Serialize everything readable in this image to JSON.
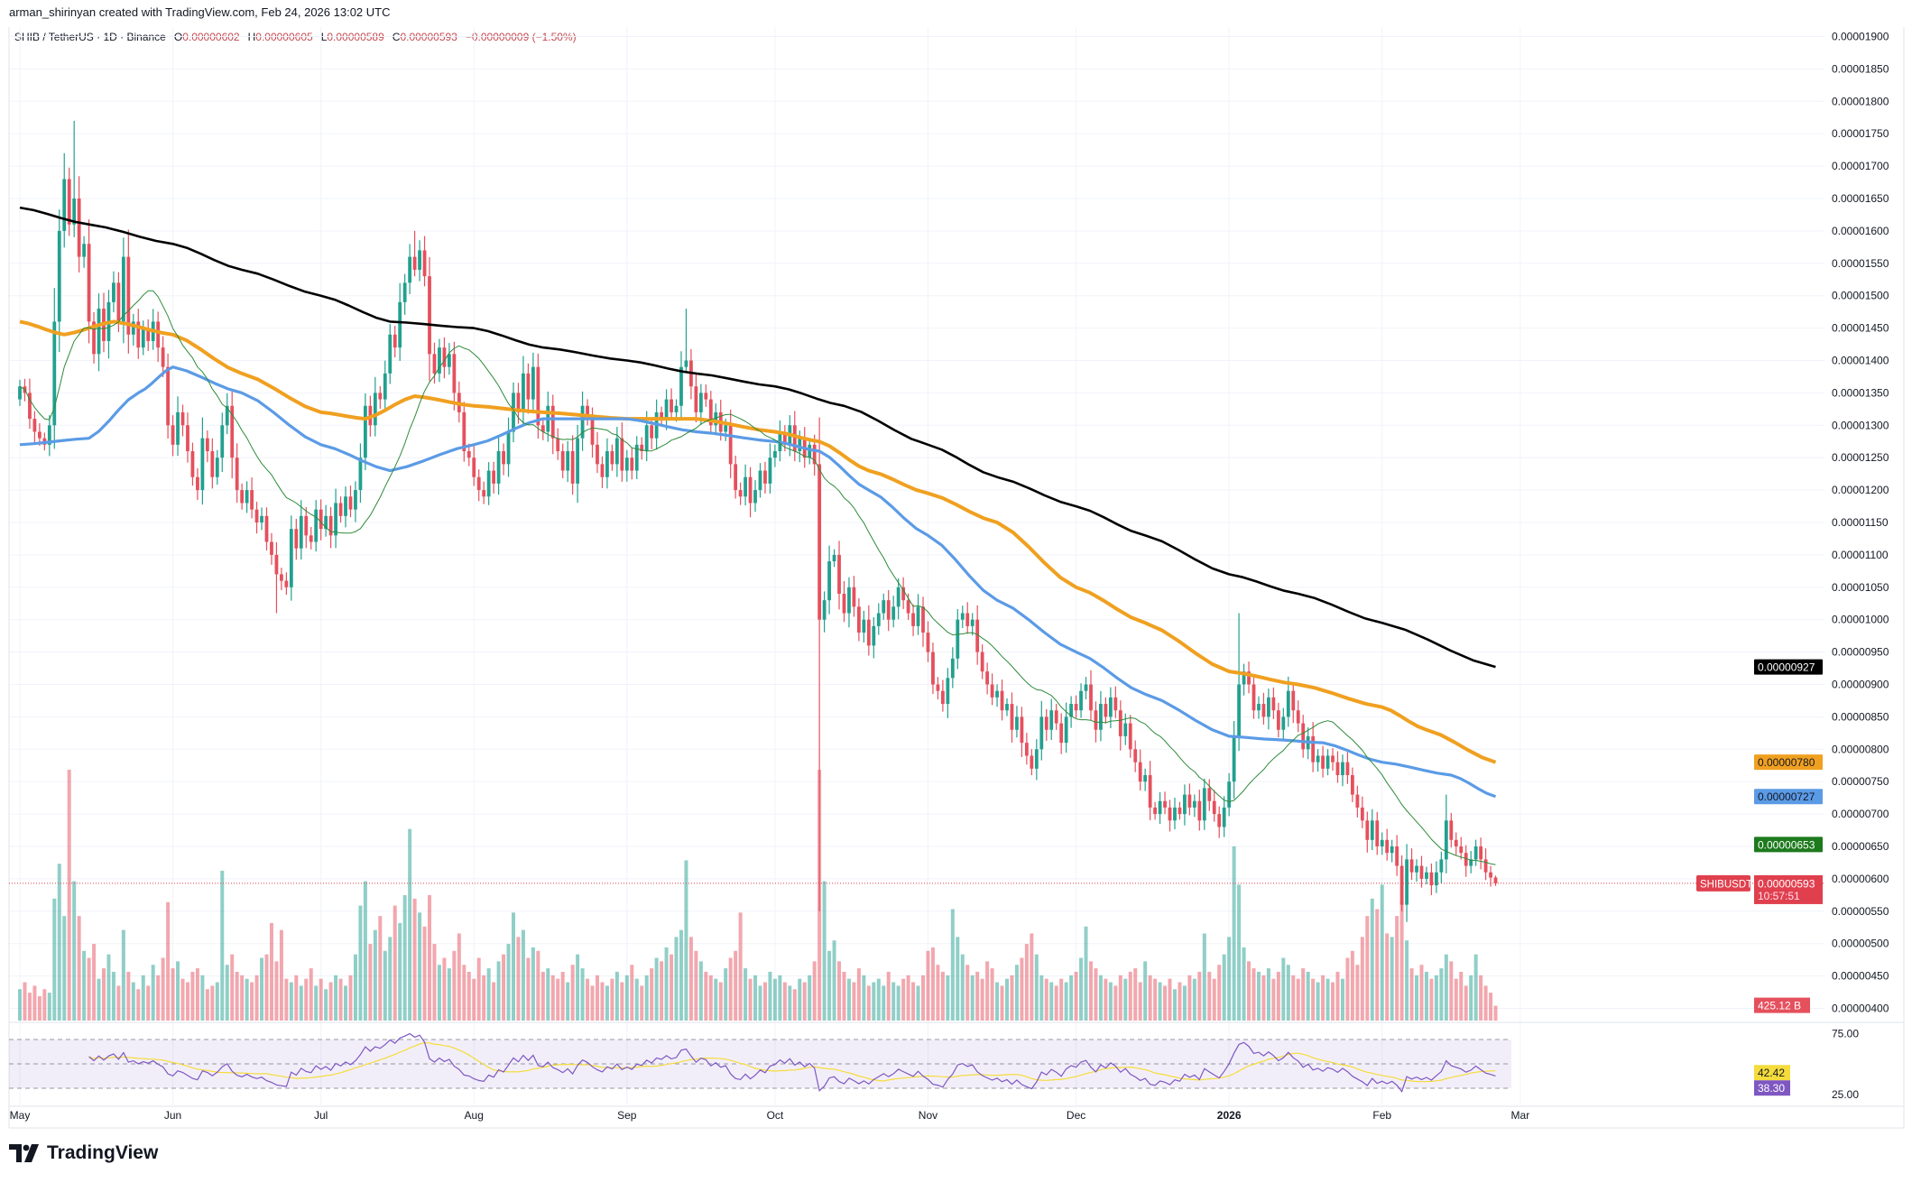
{
  "header": {
    "attribution": "arman_shirinyan created with TradingView.com, Feb 24, 2026 13:02 UTC"
  },
  "legend": {
    "symbol": "SHIB / TetherUS · 1D · Binance",
    "o_label": "O",
    "o": "0.00000602",
    "h_label": "H",
    "h": "0.00000605",
    "l_label": "L",
    "l": "0.00000589",
    "c_label": "C",
    "c": "0.00000593",
    "change": "−0.00000009 (−1.50%)"
  },
  "price_axis": {
    "ticks": [
      "0.00001900",
      "0.00001850",
      "0.00001800",
      "0.00001750",
      "0.00001700",
      "0.00001650",
      "0.00001600",
      "0.00001550",
      "0.00001500",
      "0.00001450",
      "0.00001400",
      "0.00001350",
      "0.00001300",
      "0.00001250",
      "0.00001200",
      "0.00001150",
      "0.00001100",
      "0.00001050",
      "0.00001000",
      "0.00000950",
      "0.00000900",
      "0.00000850",
      "0.00000800",
      "0.00000750",
      "0.00000700",
      "0.00000650",
      "0.00000600",
      "0.00000550",
      "0.00000500",
      "0.00000450",
      "0.00000400"
    ]
  },
  "ma_labels": {
    "ma200": "0.00000927",
    "ma100": "0.00000780",
    "ma50": "0.00000727",
    "ma20": "0.00000653"
  },
  "price_tag": {
    "symbol": "SHIBUSDT",
    "price": "0.00000593",
    "countdown": "10:57:51"
  },
  "volume_tag": "425.12 B",
  "rsi_axis": {
    "ticks": [
      "75.00",
      "25.00"
    ]
  },
  "rsi_values": {
    "rsi_ma": "42.42",
    "rsi": "38.30"
  },
  "time_axis": [
    {
      "label": "May",
      "date": "2025-05-01"
    },
    {
      "label": "Jun",
      "date": "2025-06-01"
    },
    {
      "label": "Jul",
      "date": "2025-07-01"
    },
    {
      "label": "Aug",
      "date": "2025-08-01"
    },
    {
      "label": "Sep",
      "date": "2025-09-01"
    },
    {
      "label": "Oct",
      "date": "2025-10-01"
    },
    {
      "label": "Nov",
      "date": "2025-11-01"
    },
    {
      "label": "Dec",
      "date": "2025-12-01"
    },
    {
      "label": "2026",
      "date": "2026-01-01",
      "bold": true
    },
    {
      "label": "Feb",
      "date": "2026-02-01"
    },
    {
      "label": "Mar",
      "date": "2026-03-01"
    }
  ],
  "brand": "TradingView",
  "colors": {
    "up": "#22a08f",
    "down": "#e5505d",
    "ma200": "#000000",
    "ma100": "#f0a020",
    "ma50": "#5b9be6",
    "ma20": "#2e8b3a",
    "ma20_label": "#1d7a1d",
    "rsi": "#7e57c2",
    "rsi_ma": "#f5dc3c",
    "price_tag": "#e0404e"
  },
  "chart_data": {
    "type": "candlestick",
    "symbol": "SHIB / TetherUS",
    "interval": "1D",
    "date_range": [
      "2025-05-01",
      "2026-02-24"
    ],
    "ylim": [
      3.8e-06,
      1.91e-05
    ],
    "grid": true,
    "closes": [
      1.36e-05,
      1.35e-05,
      1.31e-05,
      1.29e-05,
      1.28e-05,
      1.27e-05,
      1.3e-05,
      1.46e-05,
      1.6e-05,
      1.68e-05,
      1.61e-05,
      1.65e-05,
      1.56e-05,
      1.58e-05,
      1.46e-05,
      1.41e-05,
      1.48e-05,
      1.43e-05,
      1.49e-05,
      1.52e-05,
      1.46e-05,
      1.56e-05,
      1.44e-05,
      1.46e-05,
      1.42e-05,
      1.45e-05,
      1.43e-05,
      1.46e-05,
      1.42e-05,
      1.39e-05,
      1.3e-05,
      1.27e-05,
      1.32e-05,
      1.3e-05,
      1.26e-05,
      1.22e-05,
      1.2e-05,
      1.28e-05,
      1.26e-05,
      1.22e-05,
      1.25e-05,
      1.3e-05,
      1.33e-05,
      1.25e-05,
      1.2e-05,
      1.18e-05,
      1.2e-05,
      1.17e-05,
      1.15e-05,
      1.16e-05,
      1.12e-05,
      1.1e-05,
      1.07e-05,
      1.06e-05,
      1.05e-05,
      1.14e-05,
      1.11e-05,
      1.16e-05,
      1.13e-05,
      1.12e-05,
      1.17e-05,
      1.14e-05,
      1.16e-05,
      1.13e-05,
      1.18e-05,
      1.16e-05,
      1.19e-05,
      1.17e-05,
      1.2e-05,
      1.25e-05,
      1.33e-05,
      1.3e-05,
      1.35e-05,
      1.34e-05,
      1.38e-05,
      1.44e-05,
      1.42e-05,
      1.49e-05,
      1.52e-05,
      1.56e-05,
      1.54e-05,
      1.57e-05,
      1.53e-05,
      1.41e-05,
      1.38e-05,
      1.42e-05,
      1.39e-05,
      1.41e-05,
      1.35e-05,
      1.32e-05,
      1.26e-05,
      1.25e-05,
      1.22e-05,
      1.2e-05,
      1.19e-05,
      1.23e-05,
      1.21e-05,
      1.26e-05,
      1.24e-05,
      1.29e-05,
      1.35e-05,
      1.32e-05,
      1.38e-05,
      1.34e-05,
      1.39e-05,
      1.3e-05,
      1.29e-05,
      1.33e-05,
      1.28e-05,
      1.26e-05,
      1.23e-05,
      1.26e-05,
      1.21e-05,
      1.28e-05,
      1.33e-05,
      1.31e-05,
      1.27e-05,
      1.24e-05,
      1.22e-05,
      1.26e-05,
      1.24e-05,
      1.28e-05,
      1.23e-05,
      1.25e-05,
      1.23e-05,
      1.27e-05,
      1.26e-05,
      1.3e-05,
      1.28e-05,
      1.32e-05,
      1.31e-05,
      1.34e-05,
      1.32e-05,
      1.33e-05,
      1.39e-05,
      1.4e-05,
      1.36e-05,
      1.32e-05,
      1.35e-05,
      1.34e-05,
      1.3e-05,
      1.32e-05,
      1.29e-05,
      1.3e-05,
      1.24e-05,
      1.2e-05,
      1.19e-05,
      1.22e-05,
      1.18e-05,
      1.2e-05,
      1.23e-05,
      1.21e-05,
      1.25e-05,
      1.26e-05,
      1.29e-05,
      1.27e-05,
      1.3e-05,
      1.26e-05,
      1.28e-05,
      1.25e-05,
      1.27e-05,
      1.24e-05,
      1e-05,
      1.03e-05,
      1.09e-05,
      1.1e-05,
      1.04e-05,
      1.01e-05,
      1.05e-05,
      1.02e-05,
      9.8e-06,
      1e-05,
      9.6e-06,
      9.9e-06,
      1.01e-05,
      1.03e-05,
      1e-05,
      1.02e-05,
      1.05e-05,
      1.03e-05,
      1.01e-05,
      9.9e-06,
      1.02e-05,
      9.8e-06,
      9.5e-06,
      9e-06,
      8.9e-06,
      8.7e-06,
      9.1e-06,
      9.4e-06,
      1e-05,
      1.01e-05,
      9.9e-06,
      1e-05,
      9.5e-06,
      9.2e-06,
      9e-06,
      8.8e-06,
      8.9e-06,
      8.6e-06,
      8.7e-06,
      8.3e-06,
      8.5e-06,
      8.1e-06,
      7.9e-06,
      7.7e-06,
      8e-06,
      8.5e-06,
      8.3e-06,
      8.6e-06,
      8.4e-06,
      8.1e-06,
      8.5e-06,
      8.7e-06,
      8.6e-06,
      8.9e-06,
      9e-06,
      8.6e-06,
      8.3e-06,
      8.7e-06,
      8.5e-06,
      8.8e-06,
      8.6e-06,
      8.2e-06,
      8.4e-06,
      8e-06,
      7.8e-06,
      7.5e-06,
      7.6e-06,
      7.1e-06,
      7e-06,
      7.2e-06,
      7.1e-06,
      6.9e-06,
      7.1e-06,
      7e-06,
      7.3e-06,
      7.1e-06,
      7.2e-06,
      6.9e-06,
      7.4e-06,
      7.2e-06,
      7e-06,
      6.8e-06,
      7.1e-06,
      7.5e-06,
      8.2e-06,
      9e-06,
      9.2e-06,
      9e-06,
      8.6e-06,
      8.7e-06,
      8.5e-06,
      8.8e-06,
      8.6e-06,
      8.3e-06,
      8.5e-06,
      8.9e-06,
      8.6e-06,
      8.4e-06,
      8e-06,
      8.2e-06,
      7.8e-06,
      7.9e-06,
      7.7e-06,
      7.9e-06,
      7.8e-06,
      7.6e-06,
      7.8e-06,
      7.6e-06,
      7.3e-06,
      7.1e-06,
      6.9e-06,
      6.6e-06,
      6.9e-06,
      6.5e-06,
      6.6e-06,
      6.4e-06,
      6.5e-06,
      6.2e-06,
      5.6e-06,
      6.3e-06,
      6.1e-06,
      6.2e-06,
      6e-06,
      6.1e-06,
      5.9e-06,
      6.1e-06,
      6.3e-06,
      6.9e-06,
      6.6e-06,
      6.5e-06,
      6.4e-06,
      6.2e-06,
      6.3e-06,
      6.5e-06,
      6.3e-06,
      6.1e-06,
      6.02e-06,
      5.93e-06
    ],
    "wicks": [
      {
        "date": "2025-05-12",
        "high": 1.77e-05
      },
      {
        "date": "2025-05-10",
        "high": 1.72e-05
      },
      {
        "date": "2025-06-22",
        "low": 1.01e-05
      },
      {
        "date": "2025-07-20",
        "high": 1.6e-05
      },
      {
        "date": "2025-09-13",
        "high": 1.48e-05
      },
      {
        "date": "2025-10-10",
        "low": 5.5e-06
      },
      {
        "date": "2026-01-03",
        "high": 1.01e-05
      },
      {
        "date": "2026-02-05",
        "low": 5.5e-06
      },
      {
        "date": "2026-02-14",
        "high": 7.3e-06
      },
      {
        "date": "2026-02-24",
        "high": 6.05e-06,
        "low": 5.89e-06
      }
    ],
    "volume_unit": "B",
    "volumes": [
      900,
      1100,
      800,
      1000,
      700,
      900,
      800,
      3500,
      4500,
      3000,
      7200,
      4000,
      3000,
      2000,
      1800,
      2200,
      1200,
      1500,
      1900,
      1400,
      1000,
      2600,
      1400,
      1100,
      900,
      1300,
      1000,
      1600,
      1300,
      1800,
      3400,
      1500,
      1700,
      1200,
      1100,
      1400,
      1500,
      1300,
      900,
      1000,
      1100,
      4300,
      1600,
      1900,
      1400,
      1300,
      1200,
      1100,
      1300,
      1800,
      1900,
      2800,
      1700,
      2600,
      1200,
      1100,
      1300,
      1000,
      1200,
      1500,
      1000,
      1200,
      900,
      1100,
      1300,
      1200,
      1000,
      1300,
      1900,
      3300,
      4000,
      2200,
      2600,
      3000,
      2000,
      2400,
      3300,
      2800,
      3600,
      5500,
      3500,
      3100,
      2700,
      3600,
      2200,
      1600,
      1800,
      1500,
      2000,
      2500,
      1600,
      1400,
      1200,
      1800,
      1300,
      1500,
      1100,
      1700,
      1900,
      2200,
      3100,
      2400,
      2600,
      1800,
      2100,
      2000,
      1400,
      1500,
      1300,
      1200,
      1400,
      1100,
      1600,
      1900,
      1500,
      1200,
      1000,
      1300,
      1100,
      1000,
      1200,
      1400,
      1100,
      1300,
      1600,
      1200,
      1000,
      1300,
      1500,
      1800,
      1700,
      2100,
      1900,
      2400,
      2600,
      4600,
      2400,
      2000,
      1700,
      1400,
      1300,
      1200,
      1100,
      1500,
      1800,
      2000,
      3100,
      1500,
      1200,
      1300,
      1000,
      1100,
      1400,
      1200,
      1300,
      1100,
      1000,
      900,
      1200,
      1100,
      1300,
      1700,
      7200,
      4000,
      2000,
      2300,
      1700,
      1400,
      1200,
      1100,
      1500,
      1300,
      1000,
      1100,
      1200,
      1000,
      1400,
      1100,
      1000,
      1200,
      1300,
      1100,
      1000,
      1300,
      2000,
      2100,
      1600,
      1400,
      1300,
      3200,
      2400,
      1900,
      1600,
      1300,
      1400,
      1200,
      1700,
      1500,
      1100,
      1000,
      1200,
      1300,
      1600,
      1800,
      2200,
      2500,
      1900,
      1300,
      1200,
      1100,
      1000,
      1200,
      1100,
      1300,
      1400,
      1800,
      2700,
      1700,
      1500,
      1300,
      1200,
      1100,
      1000,
      1300,
      1200,
      1400,
      1500,
      1100,
      1700,
      1300,
      1200,
      1100,
      1000,
      1200,
      900,
      1100,
      1000,
      1300,
      1200,
      1400,
      2500,
      1400,
      1200,
      1600,
      1900,
      2400,
      5000,
      3900,
      2100,
      1700,
      1500,
      1400,
      1300,
      1500,
      1200,
      1400,
      1800,
      1600,
      1300,
      1200,
      1500,
      1400,
      1200,
      1100,
      1300,
      1200,
      1100,
      1400,
      1200,
      1800,
      2000,
      1600,
      2400,
      3000,
      3500,
      3200,
      3900,
      2500,
      2400,
      3000,
      3400,
      2300,
      1500,
      1300,
      1600,
      1400,
      1200,
      1300,
      1500,
      1900,
      1700,
      1200,
      1400,
      1000,
      1300,
      1900,
      1300,
      1000,
      800,
      425.12
    ],
    "moving_averages": {
      "ma200": [
        [
          "2025-05-01",
          1.636e-05
        ],
        [
          "2025-05-15",
          1.61e-05
        ],
        [
          "2025-06-01",
          1.58e-05
        ],
        [
          "2025-06-15",
          1.54e-05
        ],
        [
          "2025-07-01",
          1.5e-05
        ],
        [
          "2025-07-15",
          1.46e-05
        ],
        [
          "2025-08-01",
          1.45e-05
        ],
        [
          "2025-08-15",
          1.42e-05
        ],
        [
          "2025-09-01",
          1.4e-05
        ],
        [
          "2025-09-15",
          1.38e-05
        ],
        [
          "2025-10-01",
          1.36e-05
        ],
        [
          "2025-10-15",
          1.33e-05
        ],
        [
          "2025-11-01",
          1.27e-05
        ],
        [
          "2025-11-15",
          1.22e-05
        ],
        [
          "2025-12-01",
          1.175e-05
        ],
        [
          "2025-12-15",
          1.13e-05
        ],
        [
          "2026-01-01",
          1.07e-05
        ],
        [
          "2026-01-15",
          1.04e-05
        ],
        [
          "2026-02-01",
          9.95e-06
        ],
        [
          "2026-02-24",
          9.27e-06
        ]
      ],
      "ma100": [
        [
          "2025-05-01",
          1.46e-05
        ],
        [
          "2025-05-10",
          1.44e-05
        ],
        [
          "2025-05-20",
          1.46e-05
        ],
        [
          "2025-06-01",
          1.44e-05
        ],
        [
          "2025-06-15",
          1.38e-05
        ],
        [
          "2025-07-01",
          1.32e-05
        ],
        [
          "2025-07-10",
          1.31e-05
        ],
        [
          "2025-07-20",
          1.345e-05
        ],
        [
          "2025-08-01",
          1.33e-05
        ],
        [
          "2025-08-15",
          1.32e-05
        ],
        [
          "2025-09-01",
          1.31e-05
        ],
        [
          "2025-09-15",
          1.31e-05
        ],
        [
          "2025-10-01",
          1.29e-05
        ],
        [
          "2025-10-10",
          1.275e-05
        ],
        [
          "2025-10-20",
          1.23e-05
        ],
        [
          "2025-11-01",
          1.195e-05
        ],
        [
          "2025-11-15",
          1.15e-05
        ],
        [
          "2025-12-01",
          1.05e-05
        ],
        [
          "2025-12-15",
          9.95e-06
        ],
        [
          "2026-01-01",
          9.2e-06
        ],
        [
          "2026-01-15",
          9e-06
        ],
        [
          "2026-02-01",
          8.65e-06
        ],
        [
          "2026-02-10",
          8.3e-06
        ],
        [
          "2026-02-24",
          7.8e-06
        ]
      ],
      "ma50": [
        [
          "2025-05-01",
          1.27e-05
        ],
        [
          "2025-05-15",
          1.28e-05
        ],
        [
          "2025-05-25",
          1.35e-05
        ],
        [
          "2025-06-01",
          1.39e-05
        ],
        [
          "2025-06-15",
          1.35e-05
        ],
        [
          "2025-07-01",
          1.27e-05
        ],
        [
          "2025-07-15",
          1.23e-05
        ],
        [
          "2025-08-01",
          1.27e-05
        ],
        [
          "2025-08-15",
          1.31e-05
        ],
        [
          "2025-09-01",
          1.31e-05
        ],
        [
          "2025-09-15",
          1.29e-05
        ],
        [
          "2025-10-01",
          1.275e-05
        ],
        [
          "2025-10-10",
          1.26e-05
        ],
        [
          "2025-10-20",
          1.2e-05
        ],
        [
          "2025-11-01",
          1.13e-05
        ],
        [
          "2025-11-15",
          1.03e-05
        ],
        [
          "2025-12-01",
          9.5e-06
        ],
        [
          "2025-12-15",
          8.85e-06
        ],
        [
          "2026-01-01",
          8.2e-06
        ],
        [
          "2026-01-10",
          8.15e-06
        ],
        [
          "2026-01-20",
          8.1e-06
        ],
        [
          "2026-02-01",
          7.8e-06
        ],
        [
          "2026-02-15",
          7.6e-06
        ],
        [
          "2026-02-24",
          7.27e-06
        ]
      ]
    },
    "rsi": {
      "length": 14,
      "upper": 70,
      "middle": 50,
      "lower": 30,
      "ylim": [
        20,
        80
      ]
    }
  }
}
